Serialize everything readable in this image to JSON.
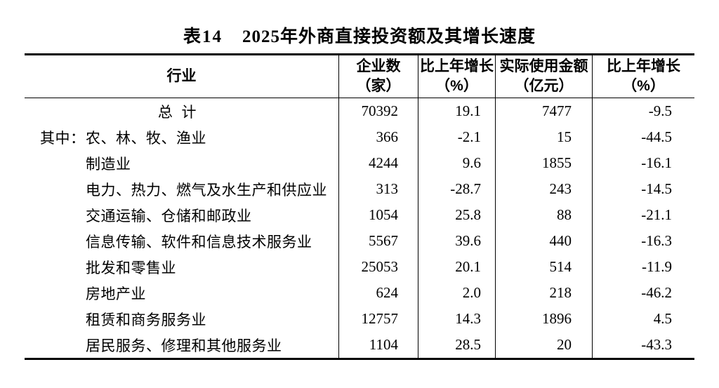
{
  "table": {
    "label": "表14",
    "title": "2025年外商直接投资额及其增长速度",
    "columns": {
      "industry": "行业",
      "enterprises_line1": "企业数",
      "enterprises_line2": "（家）",
      "ent_growth_line1": "比上年增长",
      "ent_growth_line2": "（%）",
      "amount_line1": "实际使用金额",
      "amount_line2": "（亿元）",
      "amt_growth_line1": "比上年增长",
      "amt_growth_line2": "（%）"
    },
    "rows": [
      {
        "prefix": "",
        "industry": "总计",
        "enterprises": "70392",
        "enterprises_growth": "19.1",
        "amount_used": "7477",
        "amount_growth": "-9.5"
      },
      {
        "prefix": "其中：",
        "industry": "农、林、牧、渔业",
        "enterprises": "366",
        "enterprises_growth": "-2.1",
        "amount_used": "15",
        "amount_growth": "-44.5"
      },
      {
        "prefix": "",
        "industry": "制造业",
        "enterprises": "4244",
        "enterprises_growth": "9.6",
        "amount_used": "1855",
        "amount_growth": "-16.1"
      },
      {
        "prefix": "",
        "industry": "电力、热力、燃气及水生产和供应业",
        "enterprises": "313",
        "enterprises_growth": "-28.7",
        "amount_used": "243",
        "amount_growth": "-14.5"
      },
      {
        "prefix": "",
        "industry": "交通运输、仓储和邮政业",
        "enterprises": "1054",
        "enterprises_growth": "25.8",
        "amount_used": "88",
        "amount_growth": "-21.1"
      },
      {
        "prefix": "",
        "industry": "信息传输、软件和信息技术服务业",
        "enterprises": "5567",
        "enterprises_growth": "39.6",
        "amount_used": "440",
        "amount_growth": "-16.3"
      },
      {
        "prefix": "",
        "industry": "批发和零售业",
        "enterprises": "25053",
        "enterprises_growth": "20.1",
        "amount_used": "514",
        "amount_growth": "-11.9"
      },
      {
        "prefix": "",
        "industry": "房地产业",
        "enterprises": "624",
        "enterprises_growth": "2.0",
        "amount_used": "218",
        "amount_growth": "-46.2"
      },
      {
        "prefix": "",
        "industry": "租赁和商务服务业",
        "enterprises": "12757",
        "enterprises_growth": "14.3",
        "amount_used": "1896",
        "amount_growth": "4.5"
      },
      {
        "prefix": "",
        "industry": "居民服务、修理和其他服务业",
        "enterprises": "1104",
        "enterprises_growth": "28.5",
        "amount_used": "20",
        "amount_growth": "-43.3"
      }
    ]
  }
}
